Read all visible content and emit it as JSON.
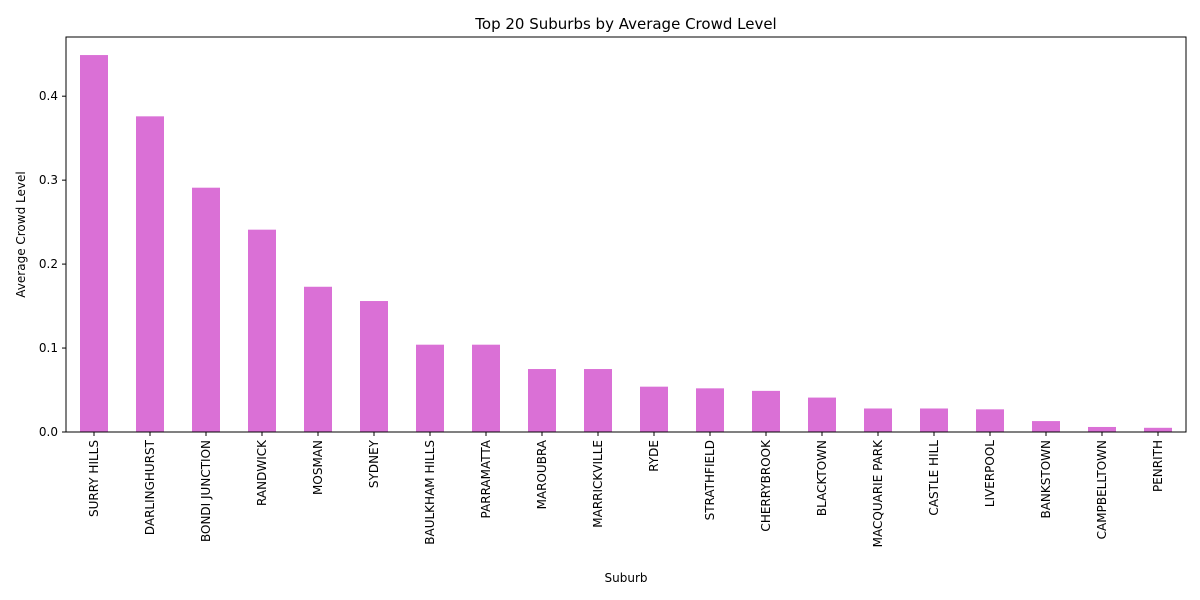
{
  "chart_data": {
    "type": "bar",
    "title": "Top 20 Suburbs by Average Crowd Level",
    "xlabel": "Suburb",
    "ylabel": "Average Crowd Level",
    "categories": [
      "SURRY HILLS",
      "DARLINGHURST",
      "BONDI JUNCTION",
      "RANDWICK",
      "MOSMAN",
      "SYDNEY",
      "BAULKHAM HILLS",
      "PARRAMATTA",
      "MAROUBRA",
      "MARRICKVILLE",
      "RYDE",
      "STRATHFIELD",
      "CHERRYBROOK",
      "BLACKTOWN",
      "MACQUARIE PARK",
      "CASTLE HILL",
      "LIVERPOOL",
      "BANKSTOWN",
      "CAMPBELLTOWN",
      "PENRITH"
    ],
    "values": [
      0.449,
      0.376,
      0.291,
      0.241,
      0.173,
      0.156,
      0.104,
      0.104,
      0.075,
      0.075,
      0.054,
      0.052,
      0.049,
      0.041,
      0.028,
      0.028,
      0.027,
      0.013,
      0.006,
      0.005
    ],
    "yticks": [
      "0.0",
      "0.1",
      "0.2",
      "0.3",
      "0.4"
    ],
    "ylim": [
      0,
      0.4705
    ],
    "bar_color": "#da70d6",
    "grid": false,
    "legend": "none"
  }
}
